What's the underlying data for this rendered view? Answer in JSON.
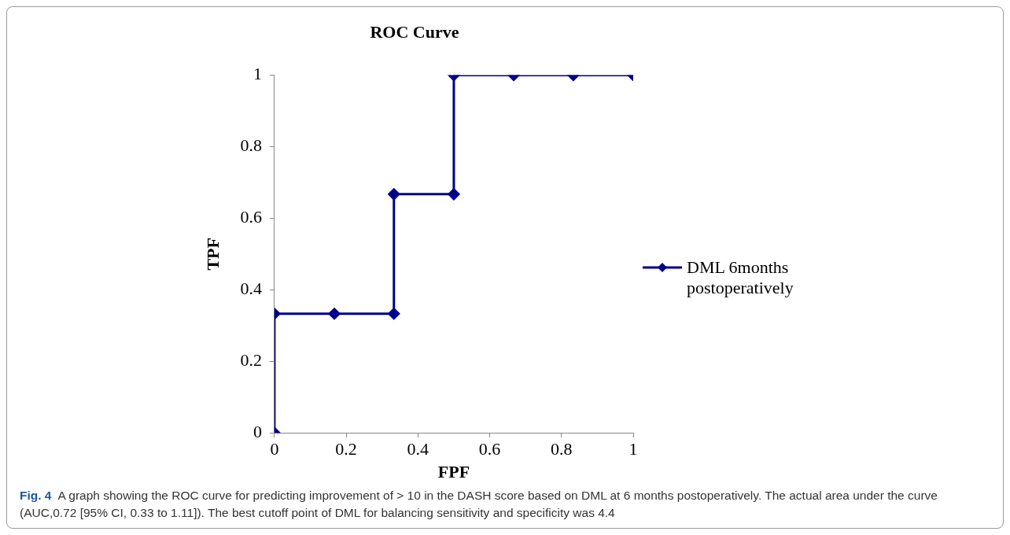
{
  "chart_data": {
    "type": "line",
    "title": "ROC Curve",
    "xlabel": "FPF",
    "ylabel": "TPF",
    "series": [
      {
        "name": "DML 6months postoperatively",
        "color": "#00008b",
        "x": [
          0,
          0,
          0.167,
          0.333,
          0.333,
          0.5,
          0.5,
          0.667,
          0.833,
          1
        ],
        "values": [
          0,
          0.333,
          0.333,
          0.333,
          0.667,
          0.667,
          1,
          1,
          1,
          1
        ]
      }
    ],
    "xlim": [
      0,
      1
    ],
    "xticks": [
      0,
      0.2,
      0.4,
      0.6,
      0.8,
      1
    ],
    "ylim": [
      0,
      1
    ],
    "yticks": [
      0,
      0.2,
      0.4,
      0.6,
      0.8,
      1
    ],
    "marker": "diamond",
    "line_style": "solid",
    "legend": "right",
    "annotations": [
      "Fig. 4",
      "A graph showing the ROC curve for predicting improvement of > 10 in the DASH score based on DML at 6 months postoperatively. The actual area under the curve (AUC,0.72 [95% CI, 0.33 to 1.11]). The best cutoff point of DML for balancing sensitivity and specificity was 4.4"
    ]
  }
}
